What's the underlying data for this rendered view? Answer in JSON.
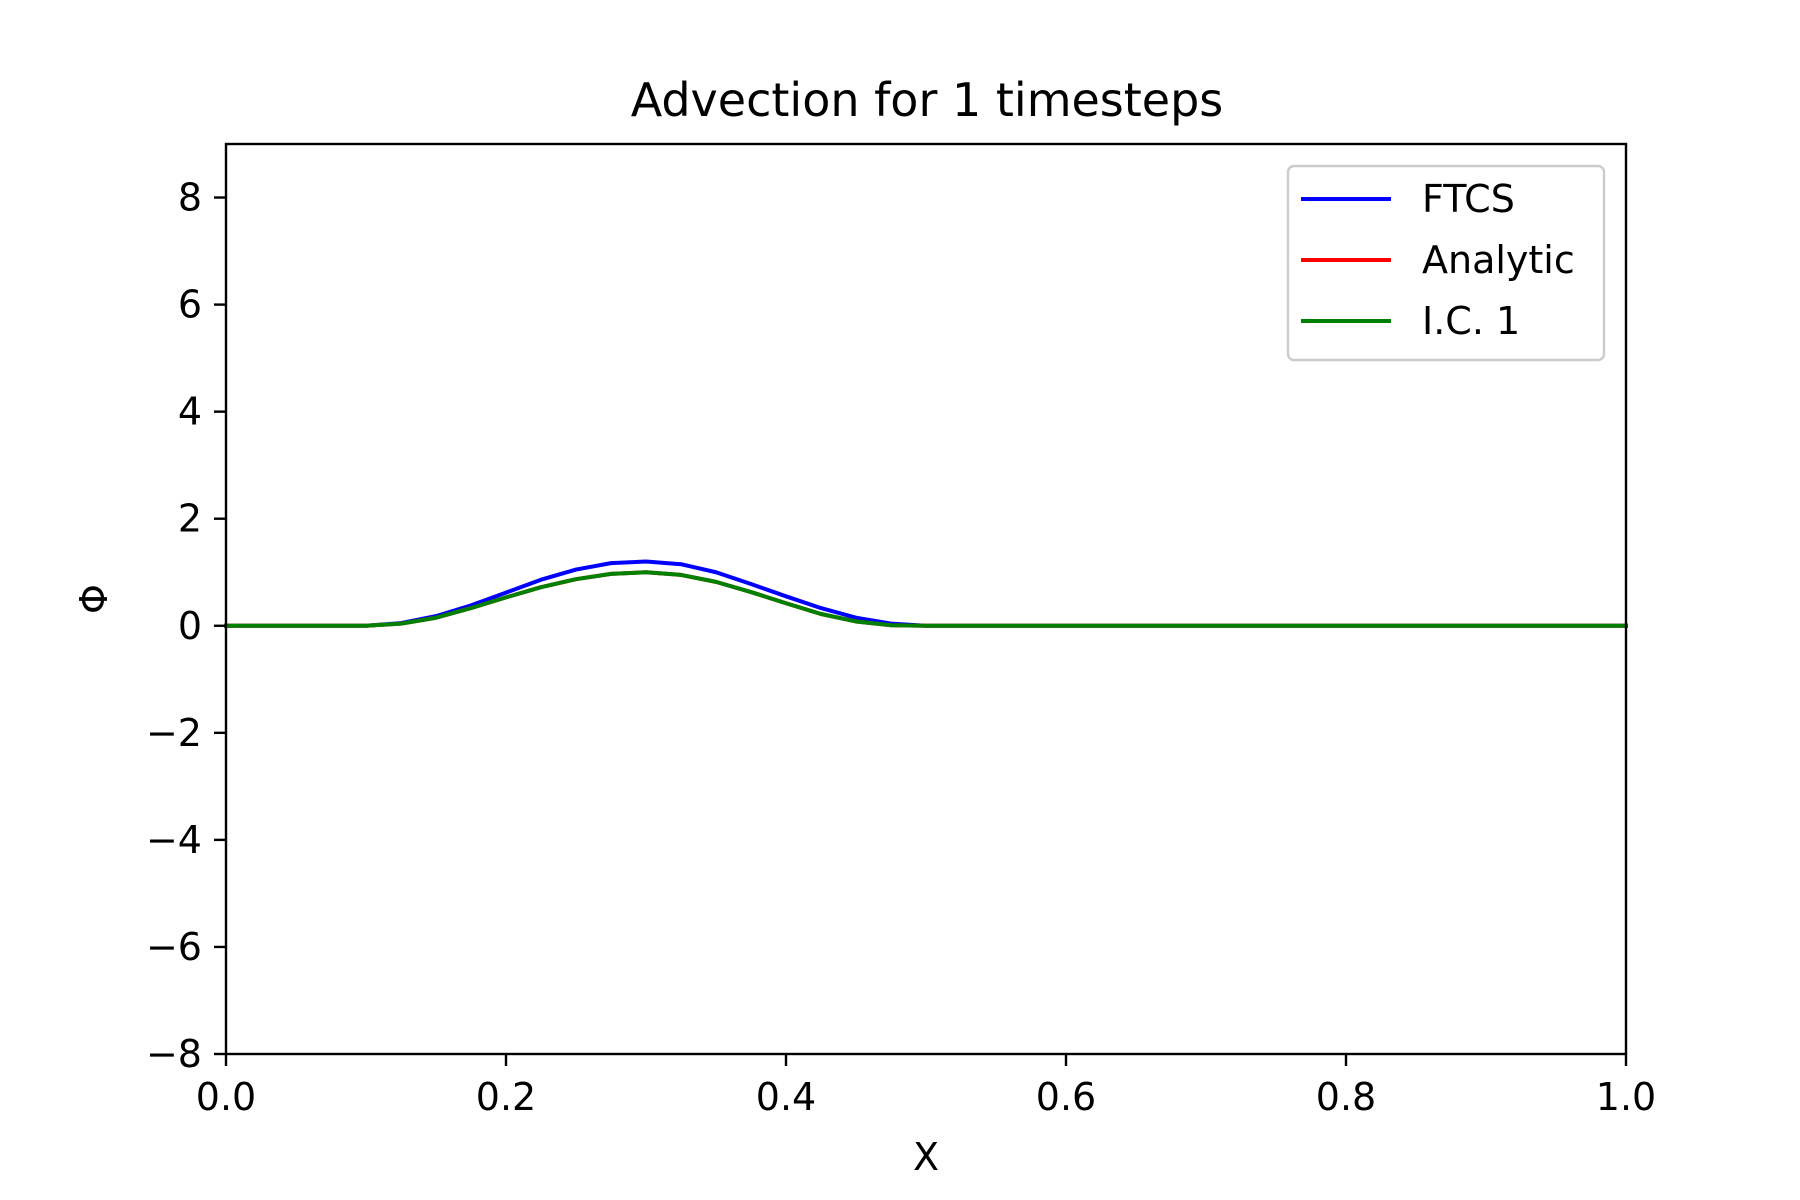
{
  "chart_data": {
    "type": "line",
    "title": "Advection for 1 timesteps",
    "xlabel": "X",
    "ylabel": "Φ",
    "xlim": [
      0.0,
      1.0
    ],
    "ylim": [
      -8,
      9
    ],
    "xticks": [
      0.0,
      0.2,
      0.4,
      0.6,
      0.8,
      1.0
    ],
    "xtick_labels": [
      "0.0",
      "0.2",
      "0.4",
      "0.6",
      "0.8",
      "1.0"
    ],
    "yticks": [
      -8,
      -6,
      -4,
      -2,
      0,
      2,
      4,
      6,
      8
    ],
    "ytick_labels": [
      "−8",
      "−6",
      "−4",
      "−2",
      "0",
      "2",
      "4",
      "6",
      "8"
    ],
    "grid": false,
    "legend_position": "top-right",
    "x": [
      0.0,
      0.025,
      0.05,
      0.075,
      0.1,
      0.125,
      0.15,
      0.175,
      0.2,
      0.225,
      0.25,
      0.275,
      0.3,
      0.325,
      0.35,
      0.375,
      0.4,
      0.425,
      0.45,
      0.475,
      0.5,
      0.525,
      0.55,
      0.6,
      0.7,
      0.8,
      0.9,
      1.0
    ],
    "series": [
      {
        "name": "FTCS",
        "color": "#0000ff",
        "values": [
          0,
          0,
          0,
          0,
          0.0,
          0.05,
          0.18,
          0.38,
          0.62,
          0.86,
          1.05,
          1.17,
          1.2,
          1.15,
          1.0,
          0.78,
          0.55,
          0.33,
          0.15,
          0.04,
          0.0,
          0,
          0,
          0,
          0,
          0,
          0,
          0
        ]
      },
      {
        "name": "Analytic",
        "color": "#ff0000",
        "values": [
          0,
          0,
          0,
          0,
          0.0,
          0.04,
          0.15,
          0.33,
          0.53,
          0.72,
          0.87,
          0.97,
          1.0,
          0.95,
          0.82,
          0.63,
          0.42,
          0.22,
          0.08,
          0.01,
          0.0,
          0,
          0,
          0,
          0,
          0,
          0,
          0
        ]
      },
      {
        "name": "I.C. 1",
        "color": "#008000",
        "values": [
          0,
          0,
          0,
          0,
          0.0,
          0.04,
          0.15,
          0.33,
          0.53,
          0.72,
          0.87,
          0.97,
          1.0,
          0.95,
          0.82,
          0.63,
          0.42,
          0.22,
          0.08,
          0.01,
          0.0,
          0,
          0,
          0,
          0,
          0,
          0,
          0
        ]
      }
    ]
  }
}
